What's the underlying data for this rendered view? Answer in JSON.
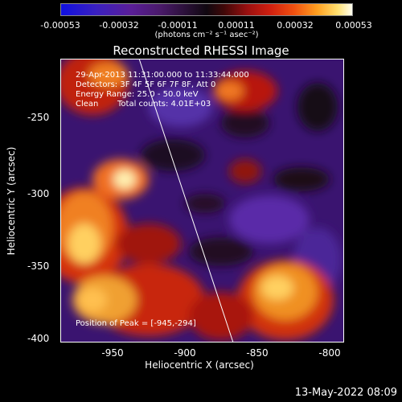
{
  "colorbar": {
    "ticks": [
      "-0.00053",
      "-0.00032",
      "-0.00011",
      "0.00011",
      "0.00032",
      "0.00053"
    ],
    "unit": "(photons cm⁻² s⁻¹ asec⁻²)"
  },
  "image": {
    "title": "Reconstructed RHESSI Image",
    "time_range": "29-Apr-2013 11:31:00.000 to 11:33:44.000",
    "detectors": "Detectors: 3F 4F 5F 6F 7F 8F, Att 0",
    "energy": "Energy Range: 25.0 - 50.0 keV",
    "method": "Clean",
    "counts": "Total counts: 4.01E+03",
    "peak": "Position of Peak = [-945,-294]"
  },
  "axes": {
    "xlabel": "Heliocentric X (arcsec)",
    "ylabel": "Heliocentric Y (arcsec)",
    "xticks": [
      "-950",
      "-900",
      "-850",
      "-800"
    ],
    "yticks": [
      "-250",
      "-300",
      "-350",
      "-400"
    ]
  },
  "timestamp": "13-May-2022 08:09"
}
